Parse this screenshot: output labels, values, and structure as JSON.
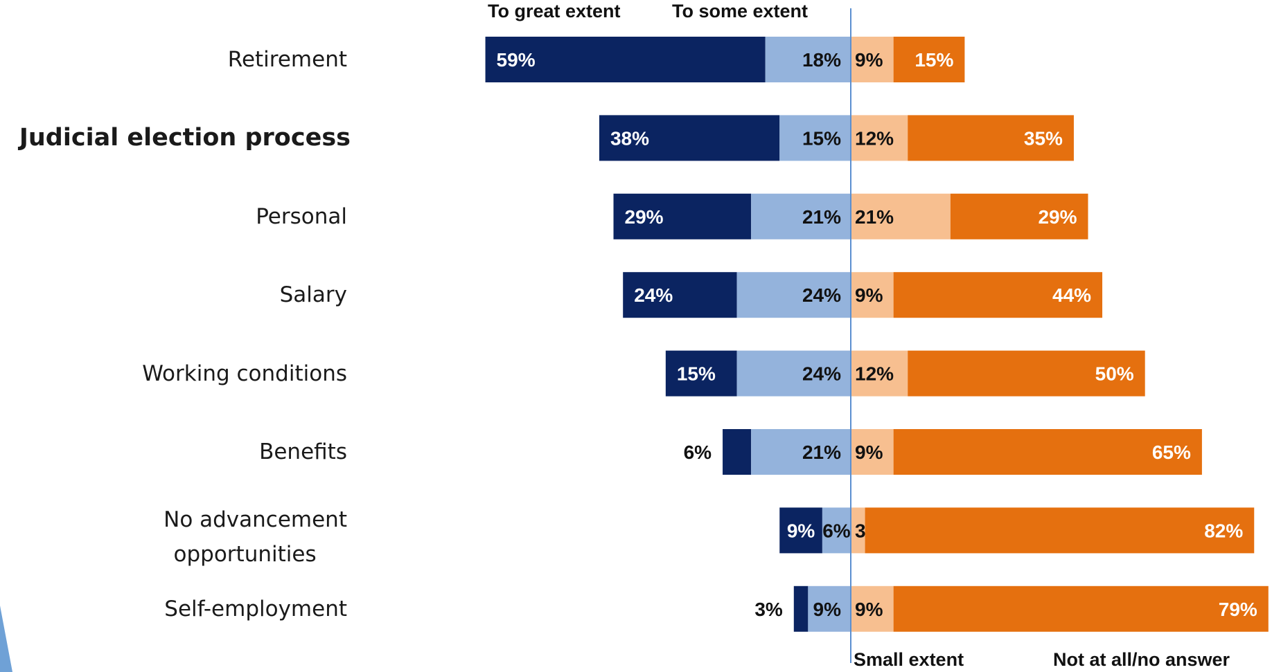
{
  "chart_data": {
    "type": "bar",
    "orientation": "horizontal-diverging",
    "categories": [
      "Retirement",
      "Judicial election process",
      "Personal",
      "Salary",
      "Working conditions",
      "Benefits",
      "No advancement opportunities",
      "Self-employment"
    ],
    "emphasized_category": "Judicial election process",
    "series": [
      {
        "name": "To great extent",
        "side": "left",
        "color": "#0b2461",
        "values": [
          59,
          38,
          29,
          24,
          15,
          6,
          9,
          3
        ],
        "labels": [
          "59%",
          "38%",
          "29%",
          "24%",
          "15%",
          "6%",
          "9%",
          "3%"
        ]
      },
      {
        "name": "To some extent",
        "side": "left",
        "color": "#94b3dc",
        "values": [
          18,
          15,
          21,
          24,
          24,
          21,
          6,
          9
        ],
        "labels": [
          "18%",
          "15%",
          "21%",
          "24%",
          "24%",
          "21%",
          "6%",
          "9%"
        ]
      },
      {
        "name": "Small extent",
        "side": "right",
        "color": "#f7bf90",
        "values": [
          9,
          12,
          21,
          9,
          12,
          9,
          3,
          9
        ],
        "labels": [
          "9%",
          "12%",
          "21%",
          "9%",
          "12%",
          "9%",
          "3%",
          "9%"
        ]
      },
      {
        "name": "Not at all/no answer",
        "side": "right",
        "color": "#e5700f",
        "values": [
          15,
          35,
          29,
          44,
          50,
          65,
          82,
          79
        ],
        "labels": [
          "15%",
          "35%",
          "29%",
          "44%",
          "50%",
          "65%",
          "82%",
          "79%"
        ]
      }
    ],
    "legend_top": [
      "To great extent",
      "To some extent"
    ],
    "legend_bottom": [
      "Small extent",
      "Not at all/no answer"
    ],
    "divider_color": "#5b8fd0",
    "grid": false
  }
}
